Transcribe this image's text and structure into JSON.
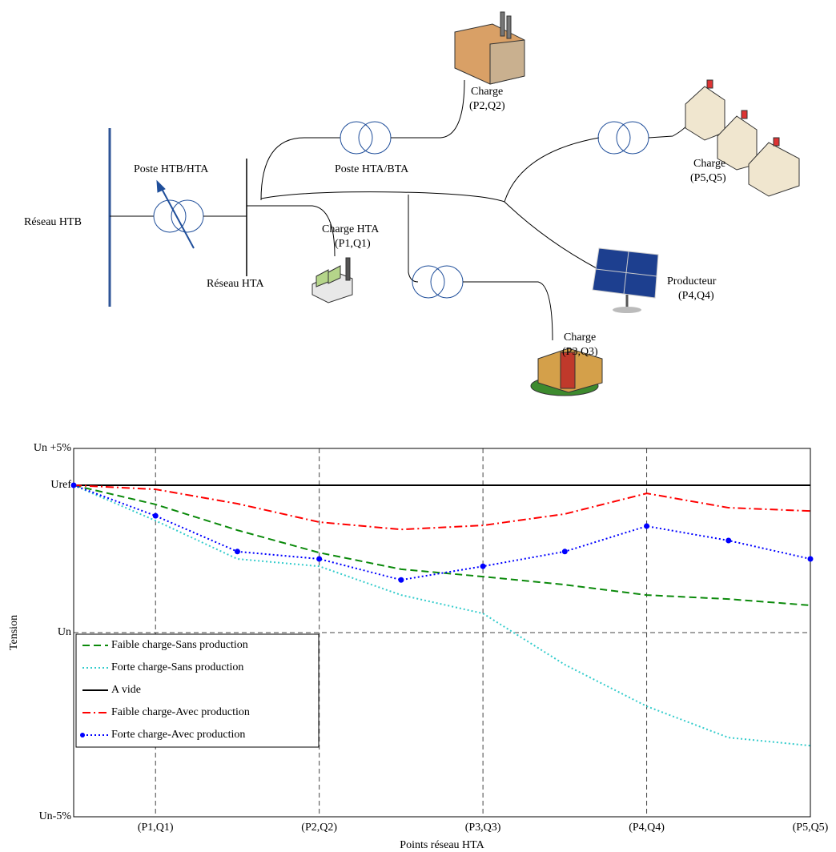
{
  "diagram": {
    "labels": [
      "Réseau HTB",
      "Poste HTB/HTA",
      "Réseau HTA",
      "Poste HTA/BTA",
      "Charge HTA",
      "(P1,Q1)",
      "Charge",
      "(P2,Q2)",
      "Charge",
      "(P3,Q3)",
      "Producteur",
      "(P4,Q4)",
      "Charge",
      "(P5,Q5)"
    ]
  },
  "chart_data": {
    "type": "line",
    "x_label": "Points réseau HTA",
    "y_label": "Tension",
    "categories": [
      null,
      "(P1,Q1)",
      null,
      "(P2,Q2)",
      null,
      "(P3,Q3)",
      null,
      "(P4,Q4)",
      null,
      "(P5,Q5)"
    ],
    "ylim": [
      -5,
      5
    ],
    "yticks": [
      {
        "value": -5,
        "label": "Un-5%"
      },
      {
        "value": 0,
        "label": "Un"
      },
      {
        "value": 4,
        "label": "Uref"
      },
      {
        "value": 5,
        "label": "Un +5%"
      }
    ],
    "grid": true,
    "legend": "lower left",
    "series": [
      {
        "name": "Faible charge-Sans production",
        "color": "#0b8a0b",
        "dash": "dashed",
        "values": [
          4.0,
          3.48,
          2.78,
          2.17,
          1.72,
          1.52,
          1.3,
          1.02,
          0.91,
          0.74
        ]
      },
      {
        "name": "Forte charge-Sans production",
        "color": "#33cccc",
        "dash": "dotted",
        "values": [
          4.0,
          3.04,
          2.0,
          1.8,
          1.02,
          0.52,
          -0.87,
          -2.0,
          -2.85,
          -3.07
        ]
      },
      {
        "name": "A vide",
        "color": "#000000",
        "dash": "solid",
        "values": [
          4,
          4,
          4,
          4,
          4,
          4,
          4,
          4,
          4,
          4
        ]
      },
      {
        "name": "Faible charge-Avec production",
        "color": "#ff0000",
        "dash": "dashdot",
        "values": [
          4.0,
          3.89,
          3.5,
          3.0,
          2.8,
          2.91,
          3.22,
          3.78,
          3.39,
          3.3
        ]
      },
      {
        "name": "Forte charge-Avec production",
        "color": "#0000ff",
        "dash": "dotted",
        "markers": true,
        "values": [
          4.0,
          3.17,
          2.2,
          2.0,
          1.43,
          1.8,
          2.2,
          2.89,
          2.5,
          2.0
        ]
      }
    ]
  }
}
